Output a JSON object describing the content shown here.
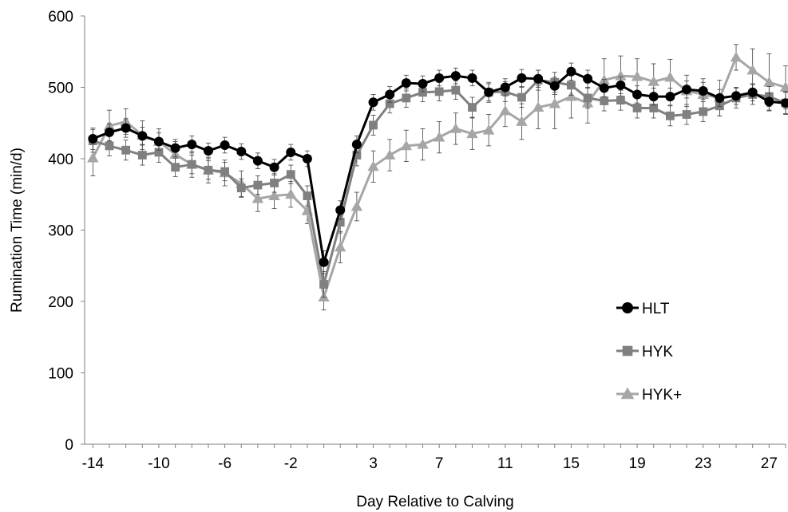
{
  "chart_data": {
    "type": "line",
    "xlabel": "Day Relative to Calving",
    "ylabel": "Rumination Time (min/d)",
    "x": [
      -14,
      -13,
      -12,
      -11,
      -10,
      -9,
      -8,
      -7,
      -6,
      -5,
      -4,
      -3,
      -2,
      -1,
      0,
      1,
      2,
      3,
      4,
      5,
      6,
      7,
      8,
      9,
      10,
      11,
      12,
      13,
      14,
      15,
      16,
      17,
      18,
      19,
      20,
      21,
      22,
      23,
      24,
      25,
      26,
      27,
      28
    ],
    "x_ticks": [
      -14,
      -10,
      -6,
      -2,
      3,
      7,
      11,
      15,
      19,
      23,
      27
    ],
    "ylim": [
      0,
      600
    ],
    "y_ticks": [
      0,
      100,
      200,
      300,
      400,
      500,
      600
    ],
    "legend_position": "right",
    "grid": false,
    "series": [
      {
        "name": "HLT",
        "color": "#000000",
        "marker": "circle",
        "values": [
          428,
          437,
          443,
          432,
          424,
          415,
          420,
          411,
          419,
          410,
          397,
          388,
          409,
          400,
          255,
          328,
          420,
          479,
          490,
          506,
          505,
          513,
          516,
          513,
          493,
          500,
          513,
          512,
          502,
          522,
          512,
          499,
          503,
          490,
          487,
          487,
          497,
          495,
          485,
          488,
          493,
          480,
          478
        ],
        "errors": [
          15,
          12,
          13,
          12,
          12,
          12,
          12,
          11,
          11,
          11,
          11,
          11,
          11,
          11,
          16,
          13,
          12,
          11,
          11,
          11,
          11,
          11,
          11,
          11,
          12,
          12,
          12,
          12,
          12,
          12,
          12,
          12,
          12,
          12,
          12,
          12,
          12,
          12,
          12,
          12,
          12,
          12,
          15
        ]
      },
      {
        "name": "HYK",
        "color": "#808080",
        "marker": "square",
        "values": [
          425,
          418,
          412,
          405,
          409,
          388,
          392,
          384,
          382,
          359,
          363,
          366,
          378,
          348,
          224,
          311,
          405,
          447,
          477,
          485,
          493,
          494,
          496,
          472,
          493,
          494,
          486,
          510,
          507,
          503,
          485,
          481,
          482,
          471,
          471,
          460,
          462,
          466,
          474,
          485,
          490,
          487,
          478
        ],
        "errors": [
          16,
          14,
          14,
          14,
          14,
          13,
          13,
          13,
          13,
          13,
          13,
          13,
          13,
          14,
          18,
          15,
          15,
          14,
          13,
          13,
          13,
          13,
          13,
          14,
          14,
          14,
          14,
          14,
          14,
          14,
          14,
          14,
          14,
          14,
          14,
          14,
          14,
          14,
          14,
          14,
          14,
          14,
          16
        ]
      },
      {
        "name": "HYK+",
        "color": "#a6a6a6",
        "marker": "triangle",
        "values": [
          401,
          446,
          452,
          433,
          424,
          406,
          392,
          384,
          380,
          365,
          344,
          348,
          350,
          327,
          206,
          276,
          333,
          389,
          405,
          418,
          420,
          430,
          442,
          435,
          440,
          467,
          452,
          472,
          477,
          487,
          478,
          510,
          516,
          515,
          508,
          514,
          495,
          490,
          485,
          542,
          524,
          507,
          500
        ],
        "errors": [
          25,
          22,
          18,
          20,
          18,
          18,
          18,
          18,
          18,
          18,
          18,
          18,
          18,
          18,
          18,
          22,
          20,
          22,
          22,
          22,
          22,
          22,
          22,
          22,
          22,
          22,
          25,
          30,
          35,
          30,
          28,
          30,
          28,
          25,
          25,
          25,
          22,
          22,
          25,
          18,
          30,
          40,
          30
        ]
      }
    ]
  }
}
